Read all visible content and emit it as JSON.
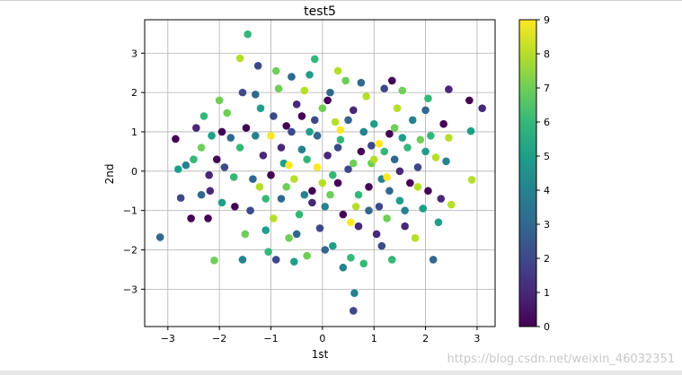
{
  "chart_data": {
    "type": "scatter",
    "title": "test5",
    "xlabel": "1st",
    "ylabel": "2nd",
    "xlim": [
      -3.45,
      3.35
    ],
    "ylim": [
      -3.95,
      3.85
    ],
    "xticks": [
      -3,
      -2,
      -1,
      0,
      1,
      2,
      3
    ],
    "yticks": [
      -3,
      -2,
      -1,
      0,
      1,
      2,
      3
    ],
    "grid": true,
    "colorbar": {
      "range": [
        0,
        9
      ],
      "ticks": [
        0,
        1,
        2,
        3,
        4,
        5,
        6,
        7,
        8,
        9
      ],
      "colormap": "viridis",
      "stops": [
        "#440154",
        "#482878",
        "#3e4989",
        "#31688e",
        "#26828e",
        "#1f9e89",
        "#35b779",
        "#6ece58",
        "#b5de2b",
        "#fde725"
      ]
    },
    "points": [
      [
        -3.15,
        -1.68,
        3
      ],
      [
        -2.75,
        -0.68,
        2
      ],
      [
        -2.85,
        0.82,
        0
      ],
      [
        -2.65,
        0.15,
        4
      ],
      [
        -2.55,
        -1.2,
        0
      ],
      [
        -2.45,
        1.1,
        1
      ],
      [
        -2.35,
        0.6,
        7
      ],
      [
        -2.3,
        1.4,
        6
      ],
      [
        -2.22,
        -1.2,
        0
      ],
      [
        -2.18,
        -0.5,
        1
      ],
      [
        -2.1,
        -2.27,
        7
      ],
      [
        -2.05,
        0.3,
        0
      ],
      [
        -2.0,
        1.8,
        7
      ],
      [
        -1.95,
        -0.8,
        5
      ],
      [
        -1.85,
        1.48,
        7
      ],
      [
        -1.78,
        0.85,
        3
      ],
      [
        -1.72,
        -0.15,
        6
      ],
      [
        -1.6,
        2.87,
        8
      ],
      [
        -1.55,
        -2.25,
        4
      ],
      [
        -1.48,
        1.1,
        0
      ],
      [
        -1.45,
        3.48,
        6
      ],
      [
        -1.4,
        -1.0,
        2
      ],
      [
        -1.3,
        1.95,
        3
      ],
      [
        -1.25,
        2.68,
        2
      ],
      [
        -1.22,
        -0.4,
        8
      ],
      [
        -1.15,
        0.4,
        1
      ],
      [
        -1.1,
        -1.5,
        5
      ],
      [
        -1.05,
        -2.05,
        6
      ],
      [
        -1.0,
        0.9,
        9
      ],
      [
        -0.95,
        1.4,
        2
      ],
      [
        -0.9,
        -2.25,
        2
      ],
      [
        -0.85,
        2.1,
        7
      ],
      [
        -0.8,
        -0.7,
        3
      ],
      [
        -0.75,
        0.2,
        5
      ],
      [
        -0.7,
        1.15,
        0
      ],
      [
        -0.65,
        -1.7,
        7
      ],
      [
        -0.6,
        2.4,
        3
      ],
      [
        -0.55,
        -0.2,
        8
      ],
      [
        -0.5,
        1.7,
        1
      ],
      [
        -0.45,
        -1.1,
        6
      ],
      [
        -0.4,
        0.55,
        4
      ],
      [
        -0.35,
        2.05,
        8
      ],
      [
        -0.3,
        -2.15,
        7
      ],
      [
        -0.25,
        1.0,
        5
      ],
      [
        -0.2,
        -0.5,
        0
      ],
      [
        -0.15,
        2.85,
        6
      ],
      [
        -0.1,
        0.1,
        9
      ],
      [
        -0.05,
        -1.45,
        2
      ],
      [
        0.0,
        1.6,
        7
      ],
      [
        0.05,
        -0.9,
        4
      ],
      [
        0.1,
        0.4,
        1
      ],
      [
        0.15,
        2.0,
        3
      ],
      [
        0.2,
        -1.9,
        5
      ],
      [
        0.25,
        1.25,
        8
      ],
      [
        0.3,
        -0.3,
        0
      ],
      [
        0.35,
        0.8,
        6
      ],
      [
        0.4,
        -2.45,
        4
      ],
      [
        0.45,
        2.3,
        7
      ],
      [
        0.5,
        0.05,
        2
      ],
      [
        0.55,
        -1.3,
        9
      ],
      [
        0.6,
        1.55,
        1
      ],
      [
        0.62,
        -3.1,
        4
      ],
      [
        0.6,
        -3.55,
        2
      ],
      [
        0.7,
        -0.6,
        6
      ],
      [
        0.75,
        0.5,
        0
      ],
      [
        0.8,
        -2.35,
        6
      ],
      [
        0.85,
        1.9,
        8
      ],
      [
        0.9,
        -1.0,
        3
      ],
      [
        0.95,
        0.2,
        7
      ],
      [
        1.0,
        1.2,
        5
      ],
      [
        1.05,
        -1.6,
        1
      ],
      [
        1.1,
        0.7,
        9
      ],
      [
        1.15,
        -0.2,
        4
      ],
      [
        1.2,
        2.1,
        2
      ],
      [
        1.25,
        -1.2,
        7
      ],
      [
        1.3,
        0.95,
        0
      ],
      [
        1.35,
        -2.25,
        6
      ],
      [
        1.4,
        0.3,
        3
      ],
      [
        1.45,
        1.6,
        8
      ],
      [
        1.5,
        -0.75,
        5
      ],
      [
        1.55,
        2.05,
        7
      ],
      [
        1.6,
        -1.4,
        1
      ],
      [
        1.65,
        0.6,
        6
      ],
      [
        1.7,
        -0.3,
        0
      ],
      [
        1.75,
        1.3,
        4
      ],
      [
        1.8,
        -1.7,
        8
      ],
      [
        1.85,
        0.1,
        2
      ],
      [
        1.9,
        0.8,
        7
      ],
      [
        1.95,
        -0.95,
        5
      ],
      [
        2.0,
        1.55,
        3
      ],
      [
        2.05,
        -0.5,
        0
      ],
      [
        2.1,
        0.9,
        6
      ],
      [
        2.15,
        -2.25,
        3
      ],
      [
        2.2,
        0.35,
        8
      ],
      [
        2.3,
        -0.7,
        1
      ],
      [
        2.35,
        1.2,
        0
      ],
      [
        2.45,
        2.08,
        1
      ],
      [
        2.45,
        0.85,
        8
      ],
      [
        2.5,
        -0.85,
        8
      ],
      [
        2.4,
        0.25,
        4
      ],
      [
        2.85,
        1.8,
        0
      ],
      [
        2.88,
        1.02,
        5
      ],
      [
        2.9,
        -0.22,
        8
      ],
      [
        3.1,
        1.6,
        1
      ],
      [
        -1.9,
        0.1,
        2
      ],
      [
        -1.7,
        -0.9,
        0
      ],
      [
        -1.6,
        0.6,
        6
      ],
      [
        -1.35,
        -0.2,
        3
      ],
      [
        -1.2,
        1.6,
        5
      ],
      [
        -1.0,
        -0.1,
        0
      ],
      [
        -0.95,
        -1.2,
        8
      ],
      [
        -0.8,
        0.6,
        1
      ],
      [
        -0.7,
        -0.4,
        7
      ],
      [
        -0.6,
        1.0,
        2
      ],
      [
        -0.5,
        -1.6,
        3
      ],
      [
        -0.4,
        1.4,
        0
      ],
      [
        -0.3,
        0.3,
        6
      ],
      [
        -0.2,
        -0.8,
        1
      ],
      [
        -0.1,
        0.9,
        3
      ],
      [
        0.0,
        -0.3,
        8
      ],
      [
        0.1,
        1.8,
        0
      ],
      [
        0.2,
        -0.1,
        6
      ],
      [
        0.3,
        0.6,
        2
      ],
      [
        0.4,
        -1.1,
        0
      ],
      [
        0.5,
        1.3,
        3
      ],
      [
        0.6,
        0.2,
        7
      ],
      [
        0.7,
        -1.4,
        1
      ],
      [
        0.8,
        1.0,
        4
      ],
      [
        0.9,
        -0.4,
        0
      ],
      [
        1.0,
        0.3,
        8
      ],
      [
        1.1,
        -0.9,
        2
      ],
      [
        1.2,
        0.5,
        6
      ],
      [
        1.3,
        -0.5,
        3
      ],
      [
        1.4,
        1.1,
        7
      ],
      [
        1.5,
        0.0,
        1
      ],
      [
        1.6,
        -1.0,
        4
      ],
      [
        -2.8,
        0.05,
        5
      ],
      [
        -2.5,
        0.3,
        6
      ],
      [
        -2.2,
        -0.1,
        1
      ],
      [
        -1.95,
        1.0,
        0
      ],
      [
        -1.5,
        -1.6,
        7
      ],
      [
        -1.3,
        0.9,
        4
      ],
      [
        -1.1,
        -0.7,
        6
      ],
      [
        -0.65,
        0.15,
        9
      ],
      [
        -0.35,
        -0.6,
        4
      ],
      [
        -0.15,
        1.3,
        2
      ],
      [
        0.15,
        -0.6,
        7
      ],
      [
        0.35,
        1.05,
        9
      ],
      [
        0.65,
        -0.9,
        8
      ],
      [
        0.95,
        0.65,
        2
      ],
      [
        1.25,
        -0.15,
        9
      ],
      [
        1.55,
        0.85,
        5
      ],
      [
        1.85,
        -0.4,
        8
      ],
      [
        2.0,
        0.5,
        5
      ],
      [
        -1.55,
        2.0,
        2
      ],
      [
        -0.9,
        2.55,
        7
      ],
      [
        -0.25,
        2.45,
        5
      ],
      [
        0.3,
        2.55,
        8
      ],
      [
        0.75,
        2.25,
        3
      ],
      [
        1.35,
        2.3,
        0
      ],
      [
        -0.55,
        -2.3,
        5
      ],
      [
        0.05,
        -2.0,
        3
      ],
      [
        0.55,
        -2.2,
        6
      ],
      [
        1.15,
        -1.9,
        2
      ],
      [
        -2.35,
        -0.6,
        3
      ],
      [
        -2.15,
        0.9,
        5
      ],
      [
        2.25,
        -1.3,
        5
      ],
      [
        2.05,
        1.85,
        6
      ]
    ]
  },
  "watermark": "https://blog.csdn.net/weixin_46032351"
}
